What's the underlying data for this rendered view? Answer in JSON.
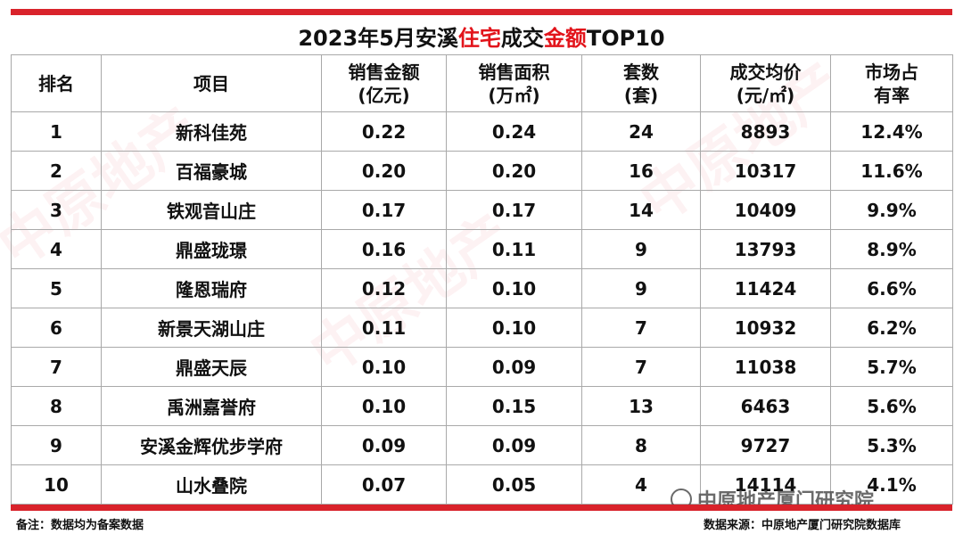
{
  "title": {
    "part1": "2023年5月安溪",
    "highlight1": "住宅",
    "part2": "成交",
    "highlight2": "金额",
    "part3": "TOP10"
  },
  "columns": [
    {
      "line1": "排名",
      "line2": ""
    },
    {
      "line1": "项目",
      "line2": ""
    },
    {
      "line1": "销售金额",
      "line2": "(亿元)"
    },
    {
      "line1": "销售面积",
      "line2": "(万㎡)"
    },
    {
      "line1": "套数",
      "line2": "(套)"
    },
    {
      "line1": "成交均价",
      "line2": "(元/㎡)"
    },
    {
      "line1": "市场占",
      "line2": "有率"
    }
  ],
  "rows": [
    {
      "rank": "1",
      "project": "新科佳苑",
      "amount": "0.22",
      "area": "0.24",
      "units": "24",
      "price": "8893",
      "share": "12.4%"
    },
    {
      "rank": "2",
      "project": "百福豪城",
      "amount": "0.20",
      "area": "0.20",
      "units": "16",
      "price": "10317",
      "share": "11.6%"
    },
    {
      "rank": "3",
      "project": "铁观音山庄",
      "amount": "0.17",
      "area": "0.17",
      "units": "14",
      "price": "10409",
      "share": "9.9%"
    },
    {
      "rank": "4",
      "project": "鼎盛珑璟",
      "amount": "0.16",
      "area": "0.11",
      "units": "9",
      "price": "13793",
      "share": "8.9%"
    },
    {
      "rank": "5",
      "project": "隆恩瑞府",
      "amount": "0.12",
      "area": "0.10",
      "units": "9",
      "price": "11424",
      "share": "6.6%"
    },
    {
      "rank": "6",
      "project": "新景天湖山庄",
      "amount": "0.11",
      "area": "0.10",
      "units": "7",
      "price": "10932",
      "share": "6.2%"
    },
    {
      "rank": "7",
      "project": "鼎盛天辰",
      "amount": "0.10",
      "area": "0.09",
      "units": "7",
      "price": "11038",
      "share": "5.7%"
    },
    {
      "rank": "8",
      "project": "禹洲嘉誉府",
      "amount": "0.10",
      "area": "0.15",
      "units": "13",
      "price": "6463",
      "share": "5.6%"
    },
    {
      "rank": "9",
      "project": "安溪金辉优步学府",
      "amount": "0.09",
      "area": "0.09",
      "units": "8",
      "price": "9727",
      "share": "5.3%"
    },
    {
      "rank": "10",
      "project": "山水叠院",
      "amount": "0.07",
      "area": "0.05",
      "units": "4",
      "price": "14114",
      "share": "4.1%"
    }
  ],
  "footer": {
    "note": "备注：数据均为备案数据",
    "source": "数据来源：中原地产厦门研究院数据库"
  },
  "watermark": {
    "brand": "中原地产厦门研究院",
    "bg_text": "中原地产"
  },
  "colors": {
    "accent": "#d9232b",
    "highlight": "#e2141b"
  }
}
